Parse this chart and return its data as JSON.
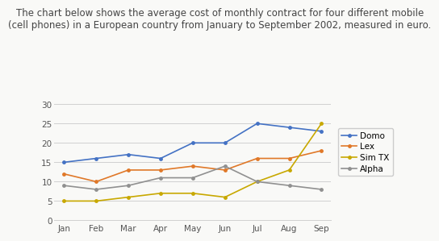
{
  "title": "The chart below shows the average cost of monthly contract for four different mobile\n(cell phones) in a European country from January to September 2002, measured in euro.",
  "months": [
    "Jan",
    "Feb",
    "Mar",
    "Apr",
    "May",
    "Jun",
    "Jul",
    "Aug",
    "Sep"
  ],
  "series": {
    "Domo": {
      "values": [
        15,
        16,
        17,
        16,
        20,
        20,
        25,
        24,
        23
      ],
      "color": "#4472C4",
      "marker": "o"
    },
    "Lex": {
      "values": [
        12,
        10,
        13,
        13,
        14,
        13,
        16,
        16,
        18
      ],
      "color": "#E07828",
      "marker": "o"
    },
    "Sim TX": {
      "values": [
        5,
        5,
        6,
        7,
        7,
        6,
        10,
        13,
        25
      ],
      "color": "#C8A800",
      "marker": "o"
    },
    "Alpha": {
      "values": [
        9,
        8,
        9,
        11,
        11,
        14,
        10,
        9,
        8
      ],
      "color": "#909090",
      "marker": "o"
    }
  },
  "ylim": [
    0,
    32
  ],
  "yticks": [
    0,
    5,
    10,
    15,
    20,
    25,
    30
  ],
  "bg_color": "#F9F9F7",
  "plot_bg_color": "#F9F9F7",
  "grid_color": "#D0D0D0",
  "title_fontsize": 8.5,
  "tick_fontsize": 7.5,
  "legend_fontsize": 7.5
}
